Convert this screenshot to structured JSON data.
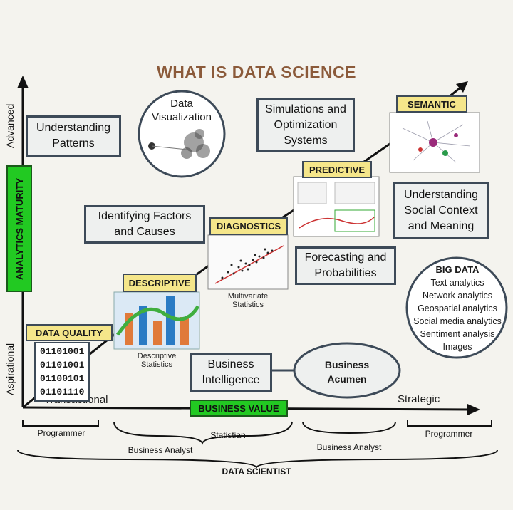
{
  "title": "WHAT IS DATA SCIENCE",
  "y_axis": {
    "top": "Advanced",
    "middle": "ANALYTICS MATURITY",
    "bottom": "Aspirational"
  },
  "x_axis": {
    "left": "Transactional",
    "middle": "BUSINESS VALUE",
    "right": "Strategic"
  },
  "stages": {
    "data_quality": "DATA QUALITY",
    "descriptive": "DESCRIPTIVE",
    "diagnostics": "DIAGNOSTICS",
    "predictive": "PREDICTIVE",
    "semantic": "SEMANTIC"
  },
  "binary": [
    "01101001",
    "01101001",
    "01100101",
    "01101110"
  ],
  "captions": {
    "descriptive_stats": "Descriptive\nStatistics",
    "multivariate": "Multivariate\nStatistics"
  },
  "boxes": {
    "understanding_patterns": "Understanding\nPatterns",
    "data_visualization": "Data\nVisualization",
    "simulations": "Simulations and\nOptimization\nSystems",
    "identifying_factors": "Identifying Factors\nand Causes",
    "forecasting": "Forecasting and\nProbabilities",
    "social_context": "Understanding\nSocial Context\nand Meaning",
    "business_intelligence": "Business\nIntelligence",
    "business_acumen": "Business\nAcumen"
  },
  "big_data": {
    "title": "BIG DATA",
    "items": [
      "Text analytics",
      "Network analytics",
      "Geospatial analytics",
      "Social media analytics",
      "Sentiment analysis",
      "Images"
    ]
  },
  "roles": {
    "programmer_left": "Programmer",
    "business_analyst_left": "Business Analyst",
    "statistian": "Statistian",
    "business_analyst_right": "Business Analyst",
    "programmer_right": "Programmer",
    "data_scientist": "DATA SCIENTIST"
  },
  "colors": {
    "yellow_label": "#f5e68a",
    "green_label": "#22c922",
    "title": "#8b5a3a",
    "border": "#3d4a58"
  }
}
